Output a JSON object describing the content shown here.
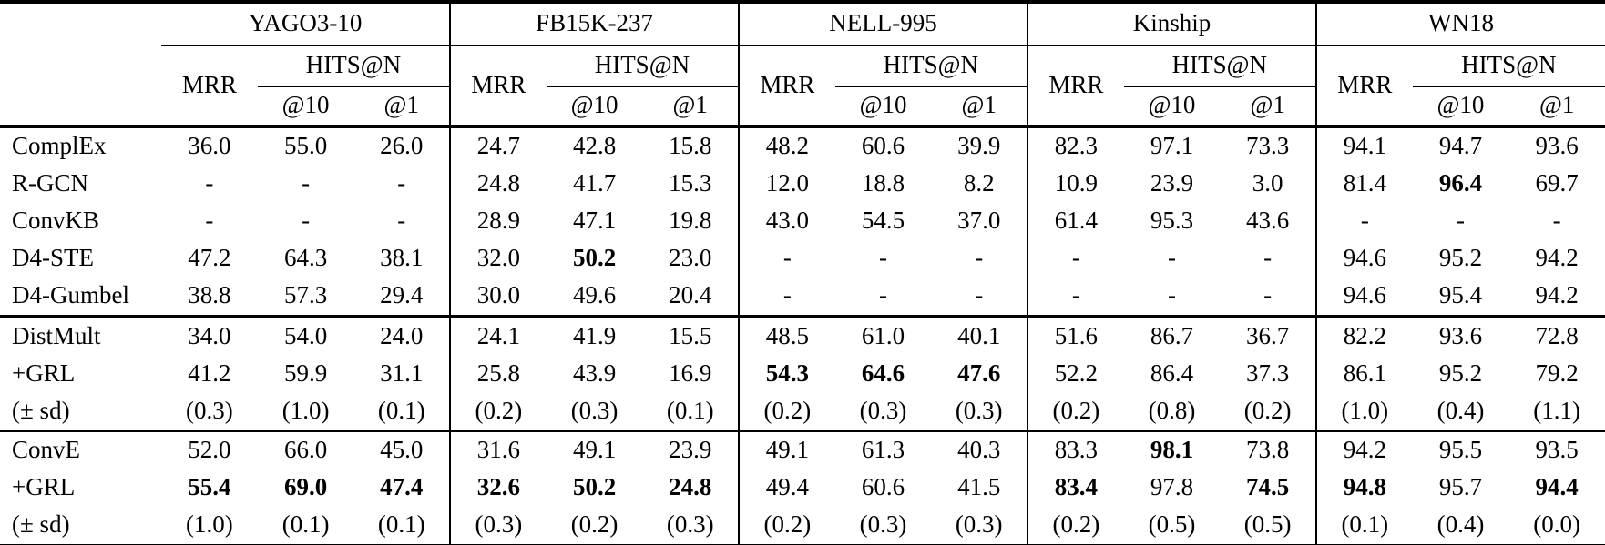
{
  "table": {
    "datasets": [
      "YAGO3-10",
      "FB15K-237",
      "NELL-995",
      "Kinship",
      "WN18"
    ],
    "metric_headers": {
      "mrr": "MRR",
      "hits": "HITS@N",
      "at10": "@10",
      "at1": "@1"
    },
    "colors": {
      "text": "#000000",
      "background": "#ffffff",
      "rule": "#000000"
    },
    "sections": [
      {
        "separator_before": "none",
        "rows": [
          {
            "label": "ComplEx",
            "values": [
              "36.0",
              "55.0",
              "26.0",
              "24.7",
              "42.8",
              "15.8",
              "48.2",
              "60.6",
              "39.9",
              "82.3",
              "97.1",
              "73.3",
              "94.1",
              "94.7",
              "93.6"
            ],
            "bold": []
          },
          {
            "label": "R-GCN",
            "values": [
              "-",
              "-",
              "-",
              "24.8",
              "41.7",
              "15.3",
              "12.0",
              "18.8",
              "8.2",
              "10.9",
              "23.9",
              "3.0",
              "81.4",
              "96.4",
              "69.7"
            ],
            "bold": [
              13
            ]
          },
          {
            "label": "ConvKB",
            "values": [
              "-",
              "-",
              "-",
              "28.9",
              "47.1",
              "19.8",
              "43.0",
              "54.5",
              "37.0",
              "61.4",
              "95.3",
              "43.6",
              "-",
              "-",
              "-"
            ],
            "bold": []
          },
          {
            "label": "D4-STE",
            "values": [
              "47.2",
              "64.3",
              "38.1",
              "32.0",
              "50.2",
              "23.0",
              "-",
              "-",
              "-",
              "-",
              "-",
              "-",
              "94.6",
              "95.2",
              "94.2"
            ],
            "bold": [
              4
            ]
          },
          {
            "label": "D4-Gumbel",
            "values": [
              "38.8",
              "57.3",
              "29.4",
              "30.0",
              "49.6",
              "20.4",
              "-",
              "-",
              "-",
              "-",
              "-",
              "-",
              "94.6",
              "95.4",
              "94.2"
            ],
            "bold": []
          }
        ]
      },
      {
        "separator_before": "thick",
        "rows": [
          {
            "label": "DistMult",
            "values": [
              "34.0",
              "54.0",
              "24.0",
              "24.1",
              "41.9",
              "15.5",
              "48.5",
              "61.0",
              "40.1",
              "51.6",
              "86.7",
              "36.7",
              "82.2",
              "93.6",
              "72.8"
            ],
            "bold": []
          },
          {
            "label": "+GRL",
            "values": [
              "41.2",
              "59.9",
              "31.1",
              "25.8",
              "43.9",
              "16.9",
              "54.3",
              "64.6",
              "47.6",
              "52.2",
              "86.4",
              "37.3",
              "86.1",
              "95.2",
              "79.2"
            ],
            "bold": [
              6,
              7,
              8
            ]
          },
          {
            "label": "(± sd)",
            "values": [
              "(0.3)",
              "(1.0)",
              "(0.1)",
              "(0.2)",
              "(0.3)",
              "(0.1)",
              "(0.2)",
              "(0.3)",
              "(0.3)",
              "(0.2)",
              "(0.8)",
              "(0.2)",
              "(1.0)",
              "(0.4)",
              "(1.1)"
            ],
            "bold": []
          }
        ]
      },
      {
        "separator_before": "thin",
        "rows": [
          {
            "label": "ConvE",
            "values": [
              "52.0",
              "66.0",
              "45.0",
              "31.6",
              "49.1",
              "23.9",
              "49.1",
              "61.3",
              "40.3",
              "83.3",
              "98.1",
              "73.8",
              "94.2",
              "95.5",
              "93.5"
            ],
            "bold": [
              10
            ]
          },
          {
            "label": "+GRL",
            "values": [
              "55.4",
              "69.0",
              "47.4",
              "32.6",
              "50.2",
              "24.8",
              "49.4",
              "60.6",
              "41.5",
              "83.4",
              "97.8",
              "74.5",
              "94.8",
              "95.7",
              "94.4"
            ],
            "bold": [
              0,
              1,
              2,
              3,
              4,
              5,
              9,
              11,
              12,
              14
            ]
          },
          {
            "label": "(± sd)",
            "values": [
              "(1.0)",
              "(0.1)",
              "(0.1)",
              "(0.3)",
              "(0.2)",
              "(0.3)",
              "(0.2)",
              "(0.3)",
              "(0.3)",
              "(0.2)",
              "(0.5)",
              "(0.5)",
              "(0.1)",
              "(0.4)",
              "(0.0)"
            ],
            "bold": []
          }
        ]
      }
    ]
  }
}
